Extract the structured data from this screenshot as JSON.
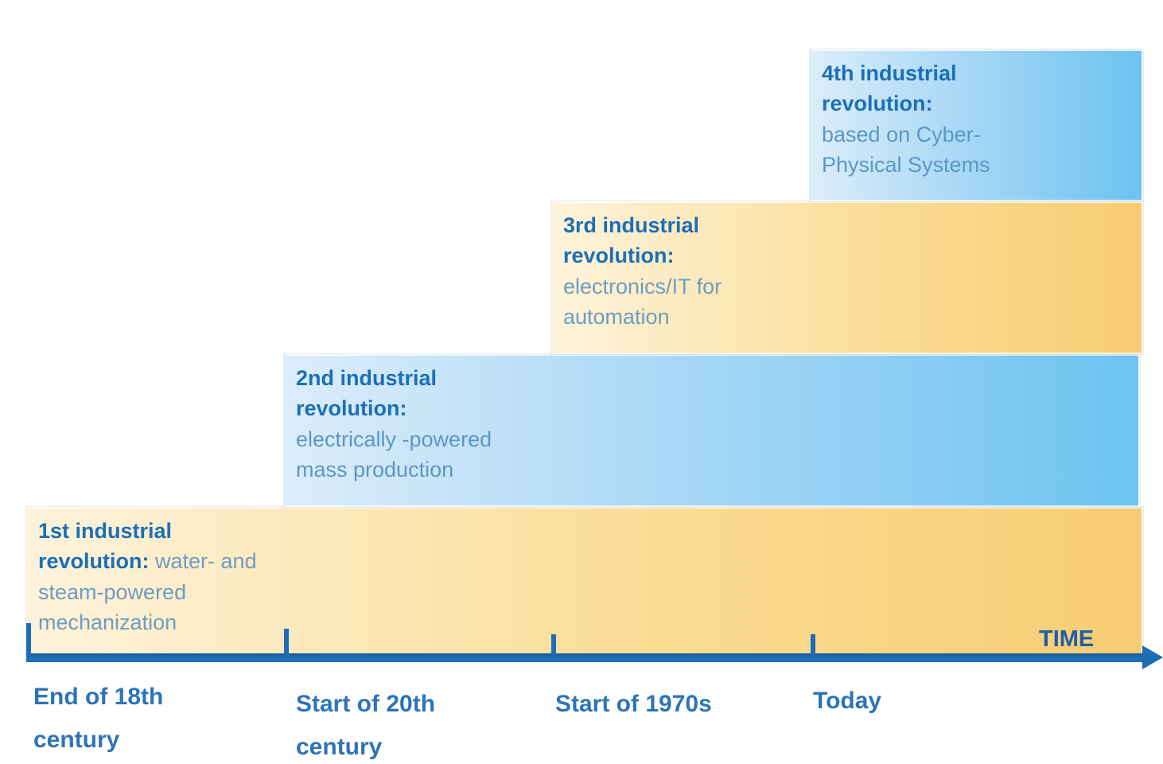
{
  "palette": {
    "yellow_gradient_start": "#FDF3DC",
    "yellow_gradient_end": "#F8CC74",
    "blue_gradient_start": "#DCEDFA",
    "blue_gradient_end": "#6CC3F0",
    "heading_text": "#1C6FB5",
    "body_text_on_yellow": "#6E9DC0",
    "body_text_on_blue": "#5B97C6",
    "axis_color": "#1E6CB5",
    "axis_label_color": "#2E74B5"
  },
  "blocks": [
    {
      "heading": "1st industrial revolution:",
      "body": "water- and steam-powered mechanization",
      "theme": "yellow"
    },
    {
      "heading": "2nd industrial revolution:",
      "body": "electrically -powered mass production",
      "theme": "blue"
    },
    {
      "heading": "3rd industrial revolution:",
      "body": "electronics/IT for automation",
      "theme": "yellow"
    },
    {
      "heading": "4th industrial revolution:",
      "body": "based on Cyber-Physical Systems",
      "theme": "blue"
    }
  ],
  "timeline": {
    "axis_label": "TIME",
    "tick_labels": [
      "End of 18th century",
      "Start of 20th century",
      "Start of 1970s",
      "Today"
    ]
  }
}
